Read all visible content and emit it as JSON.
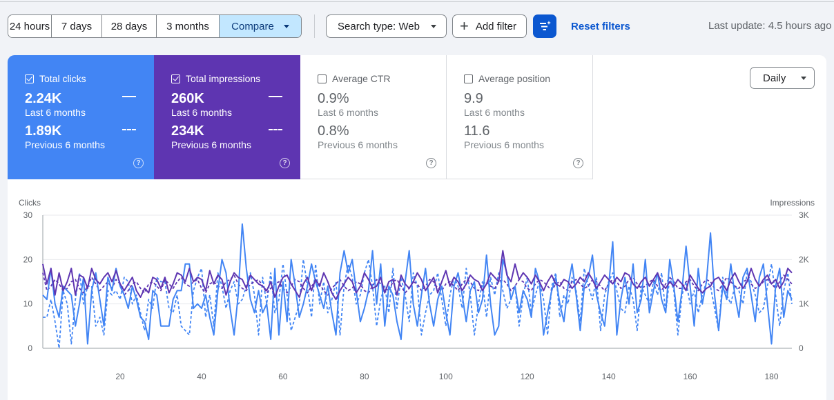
{
  "toolbar": {
    "ranges": [
      "24 hours",
      "7 days",
      "28 days",
      "3 months"
    ],
    "compare_label": "Compare",
    "search_type_label": "Search type: Web",
    "add_filter_label": "Add filter",
    "reset_label": "Reset filters",
    "last_update": "Last update: 4.5 hours ago"
  },
  "cards": [
    {
      "title": "Total clicks",
      "checked": true,
      "current_value": "2.24K",
      "current_label": "Last 6 months",
      "previous_value": "1.89K",
      "previous_label": "Previous 6 months",
      "color": "#4285f4"
    },
    {
      "title": "Total impressions",
      "checked": true,
      "current_value": "260K",
      "current_label": "Last 6 months",
      "previous_value": "234K",
      "previous_label": "Previous 6 months",
      "color": "#5e35b1"
    },
    {
      "title": "Average CTR",
      "checked": false,
      "current_value": "0.9%",
      "current_label": "Last 6 months",
      "previous_value": "0.8%",
      "previous_label": "Previous 6 months"
    },
    {
      "title": "Average position",
      "checked": false,
      "current_value": "9.9",
      "current_label": "Last 6 months",
      "previous_value": "11.6",
      "previous_label": "Previous 6 months"
    }
  ],
  "granularity": "Daily",
  "chart_data": {
    "type": "line",
    "ylabel": "Clicks",
    "y2label": "Impressions",
    "ylim": [
      0,
      30
    ],
    "yticks": [
      "0",
      "10",
      "20",
      "30"
    ],
    "y2lim": [
      0,
      3000
    ],
    "y2ticks": [
      "0",
      "1K",
      "2K",
      "3K"
    ],
    "xlim": [
      1,
      185
    ],
    "xticks": [
      20,
      40,
      60,
      80,
      100,
      120,
      140,
      160,
      180
    ],
    "grid": "horizontal",
    "colors": {
      "clicks": "#4285f4",
      "impressions": "#5e35b1"
    },
    "series": [
      {
        "name": "Total clicks",
        "axis": "left",
        "style": "solid",
        "values": [
          12,
          11,
          18,
          10,
          7,
          14,
          13,
          12,
          5,
          10,
          16,
          1,
          13,
          17,
          11,
          5,
          16,
          13,
          18,
          14,
          12,
          9,
          14,
          11,
          7,
          6,
          2,
          13,
          12,
          5,
          5,
          5,
          11,
          13,
          13,
          19,
          19,
          9,
          10,
          9,
          12,
          7,
          3,
          13,
          20,
          17,
          9,
          3,
          12,
          28,
          18,
          11,
          8,
          13,
          8,
          10,
          2,
          18,
          3,
          15,
          6,
          20,
          14,
          7,
          10,
          14,
          19,
          15,
          12,
          9,
          14,
          8,
          3,
          17,
          22,
          17,
          20,
          13,
          6,
          9,
          13,
          22,
          10,
          19,
          5,
          14,
          12,
          6,
          2,
          15,
          22,
          10,
          5,
          12,
          18,
          10,
          5,
          11,
          14,
          8,
          3,
          14,
          17,
          12,
          6,
          13,
          15,
          8,
          11,
          21,
          10,
          3,
          5,
          20,
          17,
          11,
          14,
          8,
          13,
          11,
          7,
          18,
          15,
          3,
          8,
          13,
          16,
          10,
          6,
          14,
          19,
          12,
          4,
          14,
          16,
          21,
          12,
          8,
          5,
          14,
          24,
          3,
          11,
          16,
          10,
          19,
          8,
          11,
          20,
          8,
          13,
          17,
          11,
          8,
          20,
          14,
          6,
          13,
          23,
          14,
          5,
          18,
          10,
          15,
          26,
          12,
          4,
          14,
          11,
          19,
          12,
          7,
          16,
          18,
          12,
          6,
          16,
          19,
          10,
          1,
          14,
          18,
          7,
          13,
          11
        ]
      },
      {
        "name": "Total clicks (previous)",
        "axis": "left",
        "style": "dashed",
        "values": [
          7,
          7,
          11,
          6,
          0,
          13,
          10,
          1,
          11,
          17,
          10,
          14,
          14,
          5,
          7,
          3,
          13,
          12,
          13,
          11,
          16,
          15,
          10,
          12,
          8,
          4,
          11,
          9,
          16,
          15,
          15,
          9,
          8,
          12,
          5,
          4,
          3,
          13,
          16,
          18,
          7,
          12,
          5,
          17,
          14,
          9,
          13,
          15,
          10,
          11,
          14,
          17,
          12,
          3,
          16,
          10,
          17,
          8,
          11,
          19,
          12,
          4,
          7,
          10,
          20,
          14,
          7,
          19,
          10,
          15,
          8,
          11,
          15,
          3,
          14,
          19,
          16,
          10,
          12,
          17,
          20,
          14,
          5,
          11,
          14,
          8,
          18,
          9,
          16,
          12,
          6,
          17,
          14,
          3,
          8,
          12,
          13,
          17,
          11,
          5,
          12,
          16,
          14,
          9,
          18,
          12,
          3,
          10,
          15,
          7,
          16,
          12,
          17,
          13,
          9,
          11,
          14,
          5,
          12,
          16,
          8,
          12,
          15,
          11,
          3,
          14,
          17,
          7,
          12,
          10,
          16,
          13,
          6,
          18,
          14,
          11,
          16,
          4,
          12,
          15,
          17,
          13,
          9,
          8,
          14,
          11,
          4,
          14,
          12,
          10,
          15,
          12,
          17,
          8,
          16,
          13,
          3,
          12,
          15,
          10,
          13,
          8,
          12,
          15,
          14,
          9,
          4,
          16,
          12,
          10,
          14,
          13,
          10,
          17,
          15,
          12,
          8,
          9,
          14,
          19,
          12,
          5,
          13,
          17,
          10
        ]
      },
      {
        "name": "Total impressions",
        "axis": "right",
        "style": "solid",
        "values": [
          1900,
          1450,
          1800,
          1200,
          1700,
          1300,
          1500,
          1800,
          1200,
          1650,
          1600,
          1350,
          1800,
          1550,
          1450,
          1600,
          1700,
          1500,
          1750,
          1450,
          1300,
          1450,
          1600,
          1300,
          1150,
          1350,
          1250,
          1600,
          1550,
          1350,
          1600,
          1250,
          1450,
          1700,
          1650,
          1500,
          1800,
          1500,
          1600,
          1550,
          1300,
          1750,
          1450,
          1650,
          1550,
          1200,
          1500,
          1700,
          1600,
          1550,
          1350,
          1650,
          1550,
          1450,
          1400,
          1300,
          1500,
          1150,
          1400,
          1600,
          1650,
          1450,
          1300,
          1150,
          1450,
          1600,
          1300,
          1550,
          1400,
          1700,
          1500,
          1250,
          1100,
          1300,
          1450,
          1600,
          1500,
          1250,
          1400,
          1700,
          1550,
          1350,
          1400,
          1600,
          1250,
          1500,
          1550,
          1200,
          1650,
          1450,
          1350,
          1500,
          1700,
          1550,
          1300,
          1450,
          1600,
          1250,
          1500,
          1750,
          1400,
          1600,
          1500,
          1300,
          1450,
          1650,
          1550,
          1500,
          1300,
          1450,
          1700,
          1600,
          1500,
          2200,
          1650,
          1500,
          1900,
          1550,
          1700,
          1600,
          1450,
          1650,
          1500,
          1300,
          1500,
          1650,
          1450,
          1400,
          1550,
          1500,
          1350,
          1450,
          1600,
          1500,
          1700,
          1550,
          1350,
          1500,
          1650,
          1550,
          1450,
          1600,
          1500,
          1700,
          1650,
          1450,
          1350,
          1500,
          1600,
          1400,
          1550,
          1700,
          1450,
          1350,
          1500,
          1400,
          1550,
          1450,
          1300,
          1650,
          1500,
          1350,
          1250,
          1350,
          1400,
          1550,
          1600,
          1450,
          1300,
          1550,
          1700,
          1500,
          1350,
          1500,
          1800,
          1550,
          1400,
          1550,
          1650,
          1450,
          1550,
          1350,
          1500,
          1800,
          1700
        ]
      },
      {
        "name": "Total impressions (previous)",
        "axis": "right",
        "style": "dashed",
        "values": [
          1700,
          1300,
          1400,
          1550,
          1450,
          1300,
          1350,
          1500,
          1550,
          1350,
          1250,
          1400,
          1600,
          1450,
          1300,
          1400,
          1500,
          1350,
          1550,
          1450,
          1200,
          1300,
          1450,
          1500,
          1350,
          1250,
          1450,
          1500,
          1400,
          1300,
          1550,
          1450,
          1350,
          1500,
          1600,
          1450,
          1400,
          1500,
          1550,
          1350,
          1250,
          1450,
          1500,
          1400,
          1350,
          1500,
          1550,
          1650,
          1450,
          1350,
          1300,
          1450,
          1500,
          1550,
          1400,
          1250,
          1350,
          1450,
          1500,
          1350,
          1250,
          1400,
          1550,
          1500,
          1350,
          1250,
          1400,
          1500,
          1450,
          1300,
          1200,
          1350,
          1450,
          1550,
          1400,
          1300,
          1350,
          1500,
          1450,
          1300,
          1250,
          1400,
          1550,
          1450,
          1350,
          1300,
          1500,
          1550,
          1400,
          1250,
          1350,
          1500,
          1450,
          1300,
          1400,
          1550,
          1500,
          1350,
          1300,
          1450,
          1500,
          1400,
          1300,
          1450,
          1550,
          1500,
          1350,
          1300,
          1450,
          1500,
          1400,
          1350,
          1500,
          1550,
          1450,
          1300,
          1400,
          1550,
          1500,
          1350,
          1300,
          1450,
          1550,
          1500,
          1400,
          1300,
          1450,
          1500,
          1350,
          1300,
          1500,
          1550,
          1450,
          1350,
          1400,
          1550,
          1500,
          1400,
          1300,
          1450,
          1550,
          1500,
          1350,
          1400,
          1550,
          1600,
          1450,
          1350,
          1400,
          1500,
          1550,
          1400,
          1300,
          1450,
          1600,
          1500,
          1350,
          1350,
          1500,
          1550,
          1400,
          1300,
          1450,
          1550,
          1500,
          1350,
          1300,
          1450,
          1600,
          1500,
          1400,
          1350,
          1500,
          1550,
          1450,
          1350,
          1400,
          1500,
          1550,
          1450,
          1350,
          1500,
          1650,
          1550,
          1450
        ]
      }
    ]
  }
}
